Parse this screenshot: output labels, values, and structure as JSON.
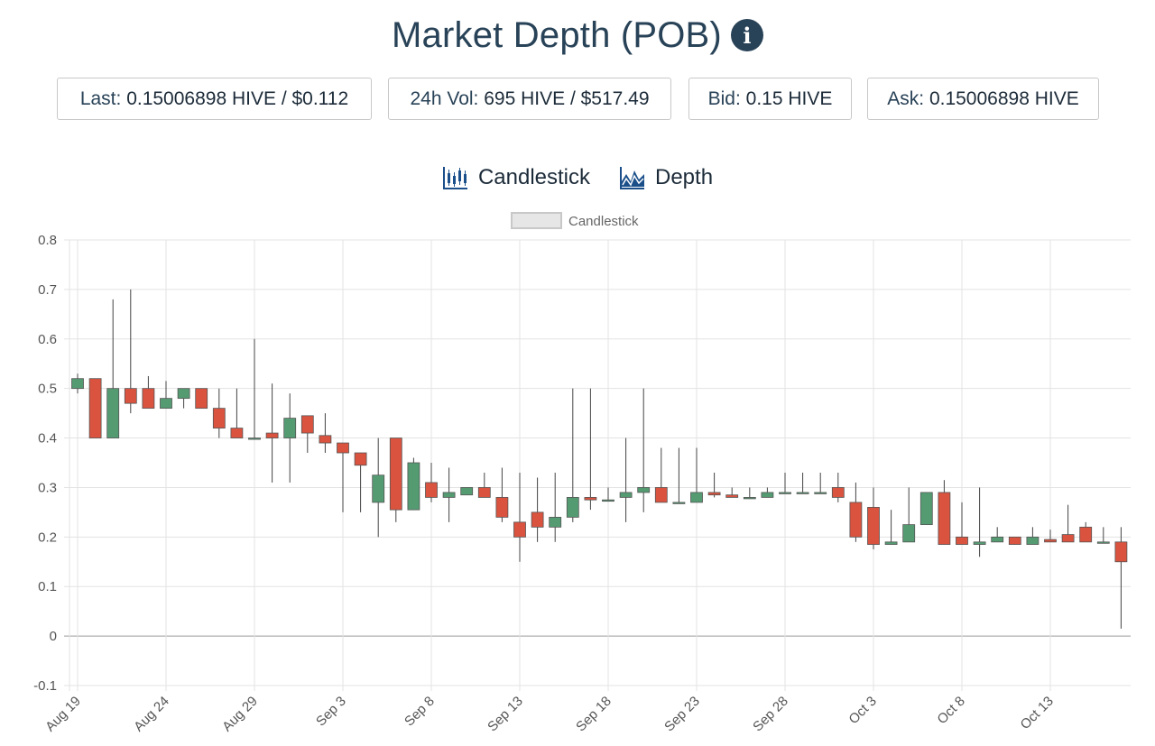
{
  "header": {
    "title": "Market Depth (POB)",
    "info_icon": "info-circle-icon"
  },
  "stats": [
    {
      "label": "Last:",
      "value": "0.15006898 HIVE / $0.112"
    },
    {
      "label": "24h Vol:",
      "value": "695 HIVE / $517.49"
    },
    {
      "label": "Bid:",
      "value": "0.15 HIVE"
    },
    {
      "label": "Ask:",
      "value": "0.15006898 HIVE"
    }
  ],
  "tabs": [
    {
      "label": "Candlestick",
      "icon": "candlestick-chart-icon"
    },
    {
      "label": "Depth",
      "icon": "depth-chart-icon"
    }
  ],
  "colors": {
    "up": "#549b72",
    "down": "#d9533f",
    "wick": "#444444",
    "text": "#284257"
  },
  "chart_data": {
    "type": "candlestick",
    "legend": {
      "label": "Candlestick",
      "position": "top"
    },
    "grid": true,
    "ylim": [
      -0.1,
      0.8
    ],
    "yticks": [
      -0.1,
      0,
      0.1,
      0.2,
      0.3,
      0.4,
      0.5,
      0.6,
      0.7,
      0.8
    ],
    "ytick_labels": [
      "-0.1",
      "0",
      "0.1",
      "0.2",
      "0.3",
      "0.4",
      "0.5",
      "0.6",
      "0.7",
      "0.8"
    ],
    "xticks": [
      "Aug 19",
      "Aug 24",
      "Aug 29",
      "Sep 3",
      "Sep 8",
      "Sep 13",
      "Sep 18",
      "Sep 23",
      "Sep 28",
      "Oct 3",
      "Oct 8",
      "Oct 13"
    ],
    "candles": [
      {
        "date": "Aug 19",
        "open": 0.5,
        "high": 0.53,
        "low": 0.49,
        "close": 0.52
      },
      {
        "date": "Aug 20",
        "open": 0.52,
        "high": 0.52,
        "low": 0.4,
        "close": 0.4
      },
      {
        "date": "Aug 21",
        "open": 0.4,
        "high": 0.68,
        "low": 0.4,
        "close": 0.5
      },
      {
        "date": "Aug 22",
        "open": 0.5,
        "high": 0.7,
        "low": 0.45,
        "close": 0.47
      },
      {
        "date": "Aug 23",
        "open": 0.5,
        "high": 0.525,
        "low": 0.46,
        "close": 0.46
      },
      {
        "date": "Aug 24",
        "open": 0.46,
        "high": 0.515,
        "low": 0.46,
        "close": 0.48
      },
      {
        "date": "Aug 25",
        "open": 0.48,
        "high": 0.5,
        "low": 0.46,
        "close": 0.5
      },
      {
        "date": "Aug 26",
        "open": 0.5,
        "high": 0.5,
        "low": 0.46,
        "close": 0.46
      },
      {
        "date": "Aug 27",
        "open": 0.46,
        "high": 0.5,
        "low": 0.4,
        "close": 0.42
      },
      {
        "date": "Aug 28",
        "open": 0.42,
        "high": 0.5,
        "low": 0.4,
        "close": 0.4
      },
      {
        "date": "Aug 29",
        "open": 0.4,
        "high": 0.6,
        "low": 0.4,
        "close": 0.4
      },
      {
        "date": "Aug 30",
        "open": 0.41,
        "high": 0.51,
        "low": 0.31,
        "close": 0.4
      },
      {
        "date": "Aug 31",
        "open": 0.4,
        "high": 0.49,
        "low": 0.31,
        "close": 0.44
      },
      {
        "date": "Sep 1",
        "open": 0.445,
        "high": 0.445,
        "low": 0.37,
        "close": 0.41
      },
      {
        "date": "Sep 2",
        "open": 0.405,
        "high": 0.45,
        "low": 0.37,
        "close": 0.39
      },
      {
        "date": "Sep 3",
        "open": 0.39,
        "high": 0.39,
        "low": 0.25,
        "close": 0.37
      },
      {
        "date": "Sep 4",
        "open": 0.37,
        "high": 0.37,
        "low": 0.25,
        "close": 0.345
      },
      {
        "date": "Sep 5",
        "open": 0.27,
        "high": 0.4,
        "low": 0.2,
        "close": 0.325
      },
      {
        "date": "Sep 6",
        "open": 0.4,
        "high": 0.4,
        "low": 0.23,
        "close": 0.255
      },
      {
        "date": "Sep 7",
        "open": 0.255,
        "high": 0.36,
        "low": 0.255,
        "close": 0.35
      },
      {
        "date": "Sep 8",
        "open": 0.31,
        "high": 0.35,
        "low": 0.27,
        "close": 0.28
      },
      {
        "date": "Sep 9",
        "open": 0.28,
        "high": 0.34,
        "low": 0.23,
        "close": 0.29
      },
      {
        "date": "Sep 10",
        "open": 0.285,
        "high": 0.3,
        "low": 0.285,
        "close": 0.3
      },
      {
        "date": "Sep 11",
        "open": 0.3,
        "high": 0.33,
        "low": 0.28,
        "close": 0.28
      },
      {
        "date": "Sep 12",
        "open": 0.28,
        "high": 0.34,
        "low": 0.23,
        "close": 0.24
      },
      {
        "date": "Sep 13",
        "open": 0.23,
        "high": 0.33,
        "low": 0.15,
        "close": 0.2
      },
      {
        "date": "Sep 14",
        "open": 0.25,
        "high": 0.32,
        "low": 0.19,
        "close": 0.22
      },
      {
        "date": "Sep 15",
        "open": 0.22,
        "high": 0.33,
        "low": 0.19,
        "close": 0.24
      },
      {
        "date": "Sep 16",
        "open": 0.24,
        "high": 0.5,
        "low": 0.23,
        "close": 0.28
      },
      {
        "date": "Sep 17",
        "open": 0.28,
        "high": 0.5,
        "low": 0.255,
        "close": 0.275
      },
      {
        "date": "Sep 18",
        "open": 0.275,
        "high": 0.3,
        "low": 0.275,
        "close": 0.275
      },
      {
        "date": "Sep 19",
        "open": 0.28,
        "high": 0.4,
        "low": 0.23,
        "close": 0.29
      },
      {
        "date": "Sep 20",
        "open": 0.29,
        "high": 0.5,
        "low": 0.25,
        "close": 0.3
      },
      {
        "date": "Sep 21",
        "open": 0.3,
        "high": 0.38,
        "low": 0.27,
        "close": 0.27
      },
      {
        "date": "Sep 22",
        "open": 0.27,
        "high": 0.38,
        "low": 0.27,
        "close": 0.27
      },
      {
        "date": "Sep 23",
        "open": 0.27,
        "high": 0.38,
        "low": 0.27,
        "close": 0.29
      },
      {
        "date": "Sep 24",
        "open": 0.29,
        "high": 0.33,
        "low": 0.28,
        "close": 0.285
      },
      {
        "date": "Sep 25",
        "open": 0.285,
        "high": 0.3,
        "low": 0.28,
        "close": 0.28
      },
      {
        "date": "Sep 26",
        "open": 0.28,
        "high": 0.3,
        "low": 0.28,
        "close": 0.28
      },
      {
        "date": "Sep 27",
        "open": 0.28,
        "high": 0.3,
        "low": 0.28,
        "close": 0.29
      },
      {
        "date": "Sep 28",
        "open": 0.29,
        "high": 0.33,
        "low": 0.29,
        "close": 0.29
      },
      {
        "date": "Sep 29",
        "open": 0.29,
        "high": 0.33,
        "low": 0.29,
        "close": 0.29
      },
      {
        "date": "Sep 30",
        "open": 0.29,
        "high": 0.33,
        "low": 0.29,
        "close": 0.29
      },
      {
        "date": "Oct 1",
        "open": 0.3,
        "high": 0.33,
        "low": 0.27,
        "close": 0.28
      },
      {
        "date": "Oct 2",
        "open": 0.27,
        "high": 0.31,
        "low": 0.19,
        "close": 0.2
      },
      {
        "date": "Oct 3",
        "open": 0.26,
        "high": 0.3,
        "low": 0.175,
        "close": 0.185
      },
      {
        "date": "Oct 4",
        "open": 0.185,
        "high": 0.255,
        "low": 0.185,
        "close": 0.19
      },
      {
        "date": "Oct 5",
        "open": 0.19,
        "high": 0.3,
        "low": 0.19,
        "close": 0.225
      },
      {
        "date": "Oct 6",
        "open": 0.225,
        "high": 0.29,
        "low": 0.225,
        "close": 0.29
      },
      {
        "date": "Oct 7",
        "open": 0.29,
        "high": 0.315,
        "low": 0.185,
        "close": 0.185
      },
      {
        "date": "Oct 8",
        "open": 0.2,
        "high": 0.27,
        "low": 0.185,
        "close": 0.185
      },
      {
        "date": "Oct 9",
        "open": 0.185,
        "high": 0.3,
        "low": 0.16,
        "close": 0.19
      },
      {
        "date": "Oct 10",
        "open": 0.19,
        "high": 0.22,
        "low": 0.19,
        "close": 0.2
      },
      {
        "date": "Oct 11",
        "open": 0.2,
        "high": 0.2,
        "low": 0.185,
        "close": 0.185
      },
      {
        "date": "Oct 12",
        "open": 0.185,
        "high": 0.22,
        "low": 0.185,
        "close": 0.2
      },
      {
        "date": "Oct 13",
        "open": 0.195,
        "high": 0.215,
        "low": 0.19,
        "close": 0.19
      },
      {
        "date": "Oct 14",
        "open": 0.205,
        "high": 0.265,
        "low": 0.19,
        "close": 0.19
      },
      {
        "date": "Oct 15",
        "open": 0.22,
        "high": 0.23,
        "low": 0.19,
        "close": 0.19
      },
      {
        "date": "Oct 16",
        "open": 0.19,
        "high": 0.22,
        "low": 0.19,
        "close": 0.19
      },
      {
        "date": "Oct 17",
        "open": 0.19,
        "high": 0.22,
        "low": 0.015,
        "close": 0.15
      }
    ]
  }
}
